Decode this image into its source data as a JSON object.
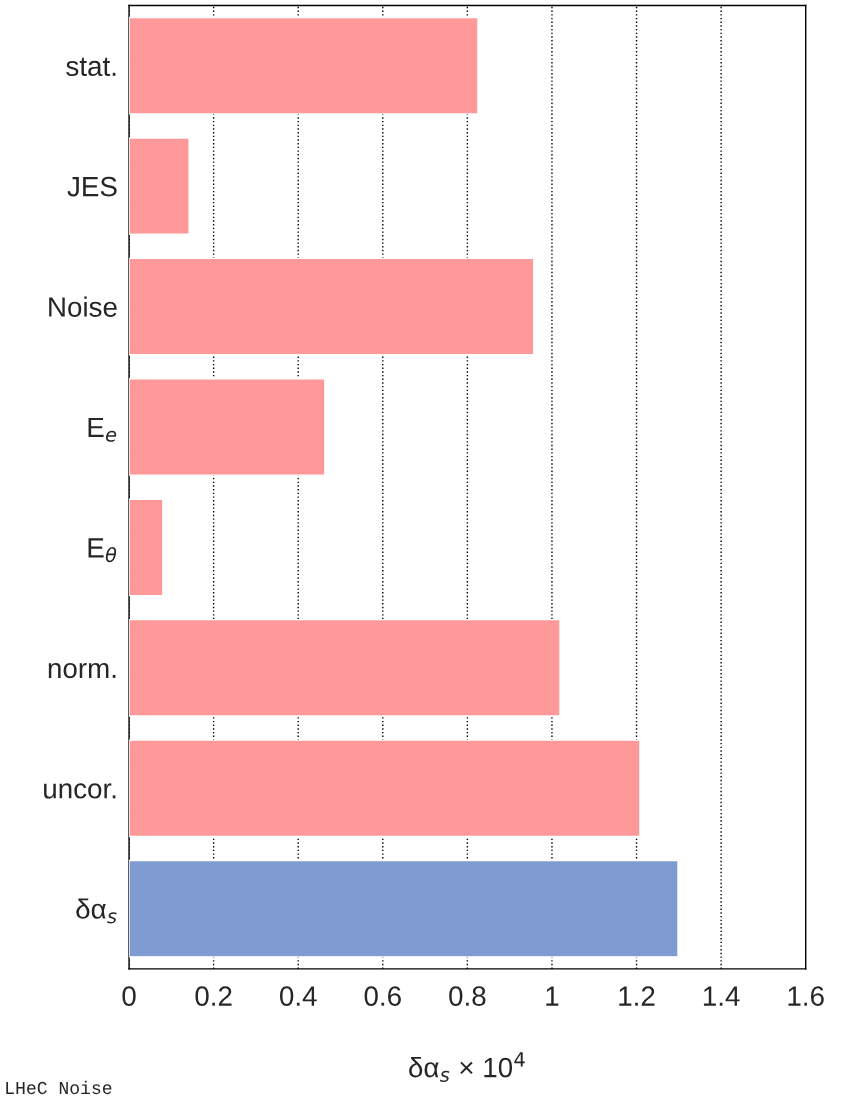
{
  "chart_data": {
    "type": "bar",
    "orientation": "horizontal",
    "categories": [
      "stat.",
      "JES",
      "Noise",
      "E$_{e}$",
      "E$_{θ}$",
      "norm.",
      "uncor.",
      "δα$_{s}$"
    ],
    "values": [
      0.825,
      0.142,
      0.957,
      0.463,
      0.08,
      1.019,
      1.208,
      1.298
    ],
    "colors": [
      "#ff9999",
      "#ff9999",
      "#ff9999",
      "#ff9999",
      "#ff9999",
      "#ff9999",
      "#ff9999",
      "#7f9bd1"
    ],
    "xlabel": "δα$_{s}$ × 10$^{4}$",
    "xlim": [
      0,
      1.6
    ],
    "xticks": [
      0,
      0.2,
      0.4,
      0.6,
      0.8,
      1,
      1.2,
      1.4,
      1.6
    ],
    "grid": "x",
    "annotations": [
      "LHeC Noise"
    ]
  }
}
